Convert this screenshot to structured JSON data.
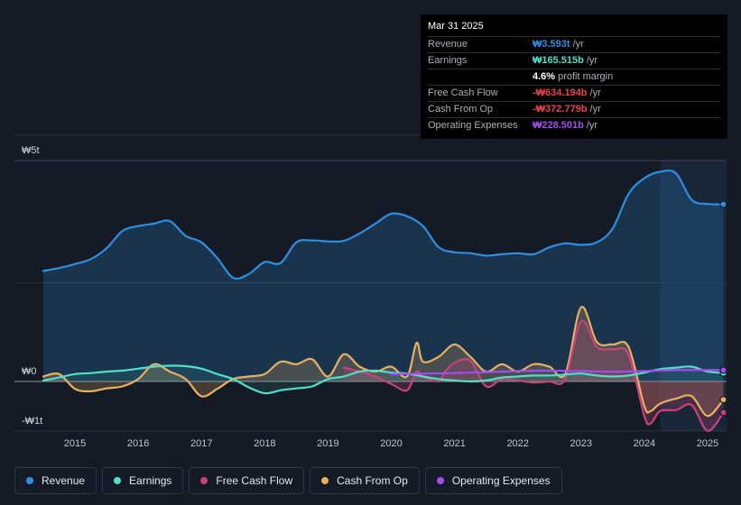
{
  "tooltip": {
    "date": "Mar 31 2025",
    "rows": [
      {
        "label": "Revenue",
        "value": "₩3.593t",
        "unit": "/yr",
        "color": "#2e8fe0"
      },
      {
        "label": "Earnings",
        "value": "₩165.515b",
        "unit": "/yr",
        "color": "#4fe0c8"
      },
      {
        "label": "",
        "value": "4.6%",
        "unit": "profit margin",
        "color": "#ffffff"
      },
      {
        "label": "Free Cash Flow",
        "value": "-₩634.194b",
        "unit": "/yr",
        "color": "#e8434d"
      },
      {
        "label": "Cash From Op",
        "value": "-₩372.779b",
        "unit": "/yr",
        "color": "#e8434d"
      },
      {
        "label": "Operating Expenses",
        "value": "₩228.501b",
        "unit": "/yr",
        "color": "#a64bf0"
      }
    ]
  },
  "legend": [
    {
      "label": "Revenue",
      "color": "#2e8fe0"
    },
    {
      "label": "Earnings",
      "color": "#4fe0c8"
    },
    {
      "label": "Free Cash Flow",
      "color": "#c8437a"
    },
    {
      "label": "Cash From Op",
      "color": "#e8b060"
    },
    {
      "label": "Operating Expenses",
      "color": "#a64bf0"
    }
  ],
  "chart_data": {
    "type": "line",
    "title": "",
    "xlabel": "",
    "ylabel": "",
    "unit": "KRW trillion",
    "x_ticks": [
      "2015",
      "2016",
      "2017",
      "2018",
      "2019",
      "2020",
      "2021",
      "2022",
      "2023",
      "2024",
      "2025"
    ],
    "y_labels": [
      {
        "value": 5,
        "label": "₩5t"
      },
      {
        "value": 0,
        "label": "₩0"
      },
      {
        "value": -1,
        "label": "-₩1t"
      }
    ],
    "ylim": [
      -1,
      5
    ],
    "xlim": [
      2014.5,
      2025.3
    ],
    "highlight_start": 2024.25,
    "series": [
      {
        "name": "Revenue",
        "color": "#2e8fe0",
        "x": [
          2014.5,
          2014.75,
          2015.0,
          2015.25,
          2015.5,
          2015.75,
          2016.0,
          2016.25,
          2016.5,
          2016.75,
          2017.0,
          2017.25,
          2017.5,
          2017.75,
          2018.0,
          2018.25,
          2018.5,
          2018.75,
          2019.0,
          2019.25,
          2019.5,
          2019.75,
          2020.0,
          2020.25,
          2020.5,
          2020.75,
          2021.0,
          2021.25,
          2021.5,
          2021.75,
          2022.0,
          2022.25,
          2022.5,
          2022.75,
          2023.0,
          2023.25,
          2023.5,
          2023.75,
          2024.0,
          2024.25,
          2024.5,
          2024.75,
          2025.0,
          2025.25
        ],
        "values": [
          2.24,
          2.3,
          2.38,
          2.48,
          2.7,
          3.05,
          3.15,
          3.2,
          3.25,
          2.95,
          2.82,
          2.5,
          2.1,
          2.18,
          2.42,
          2.4,
          2.82,
          2.86,
          2.84,
          2.85,
          3.0,
          3.2,
          3.4,
          3.35,
          3.15,
          2.72,
          2.62,
          2.6,
          2.55,
          2.58,
          2.6,
          2.58,
          2.72,
          2.8,
          2.77,
          2.82,
          3.1,
          3.8,
          4.12,
          4.25,
          4.22,
          3.68,
          3.6,
          3.59
        ]
      },
      {
        "name": "Earnings",
        "color": "#4fe0c8",
        "x": [
          2014.5,
          2014.75,
          2015.0,
          2015.25,
          2015.5,
          2015.75,
          2016.0,
          2016.25,
          2016.5,
          2016.75,
          2017.0,
          2017.25,
          2017.5,
          2017.75,
          2018.0,
          2018.25,
          2018.5,
          2018.75,
          2019.0,
          2019.25,
          2019.5,
          2019.75,
          2020.0,
          2020.25,
          2020.5,
          2020.75,
          2021.0,
          2021.25,
          2021.5,
          2021.75,
          2022.0,
          2022.25,
          2022.5,
          2022.75,
          2023.0,
          2023.25,
          2023.5,
          2023.75,
          2024.0,
          2024.25,
          2024.5,
          2024.75,
          2025.0,
          2025.25
        ],
        "values": [
          0.02,
          0.08,
          0.15,
          0.17,
          0.2,
          0.22,
          0.26,
          0.3,
          0.32,
          0.31,
          0.26,
          0.15,
          0.05,
          -0.12,
          -0.24,
          -0.18,
          -0.14,
          -0.1,
          0.05,
          0.1,
          0.2,
          0.22,
          0.18,
          0.16,
          0.1,
          0.05,
          0.02,
          0.0,
          0.02,
          0.08,
          0.1,
          0.12,
          0.12,
          0.14,
          0.16,
          0.12,
          0.1,
          0.12,
          0.18,
          0.25,
          0.28,
          0.3,
          0.2,
          0.17
        ]
      },
      {
        "name": "Free Cash Flow",
        "color": "#c8437a",
        "x": [
          2019.25,
          2019.5,
          2019.75,
          2020.0,
          2020.25,
          2020.4,
          2020.5,
          2020.75,
          2020.85,
          2021.0,
          2021.25,
          2021.5,
          2021.75,
          2022.0,
          2022.25,
          2022.5,
          2022.75,
          2023.0,
          2023.25,
          2023.5,
          2023.75,
          2024.0,
          2024.1,
          2024.25,
          2024.5,
          2024.75,
          2025.0,
          2025.25
        ],
        "values": [
          0.28,
          0.2,
          0.1,
          -0.05,
          -0.18,
          0.2,
          0.1,
          0.0,
          0.2,
          0.38,
          0.42,
          -0.1,
          0.05,
          0.02,
          -0.02,
          0.0,
          0.05,
          1.22,
          0.7,
          0.65,
          0.55,
          -0.7,
          -0.85,
          -0.6,
          -0.58,
          -0.48,
          -1.0,
          -0.63
        ]
      },
      {
        "name": "Cash From Op",
        "color": "#e8b060",
        "x": [
          2014.5,
          2014.75,
          2015.0,
          2015.25,
          2015.5,
          2015.75,
          2016.0,
          2016.25,
          2016.5,
          2016.75,
          2017.0,
          2017.25,
          2017.5,
          2017.75,
          2018.0,
          2018.25,
          2018.5,
          2018.75,
          2019.0,
          2019.25,
          2019.5,
          2019.75,
          2020.0,
          2020.25,
          2020.4,
          2020.5,
          2020.75,
          2021.0,
          2021.25,
          2021.5,
          2021.75,
          2022.0,
          2022.25,
          2022.5,
          2022.75,
          2023.0,
          2023.25,
          2023.5,
          2023.75,
          2024.0,
          2024.1,
          2024.25,
          2024.5,
          2024.75,
          2025.0,
          2025.25
        ],
        "values": [
          0.1,
          0.15,
          -0.15,
          -0.2,
          -0.14,
          -0.1,
          0.05,
          0.35,
          0.2,
          0.05,
          -0.3,
          -0.15,
          0.05,
          0.1,
          0.15,
          0.4,
          0.35,
          0.45,
          0.1,
          0.55,
          0.3,
          0.2,
          0.3,
          0.1,
          0.78,
          0.4,
          0.5,
          0.75,
          0.5,
          0.2,
          0.35,
          0.2,
          0.35,
          0.3,
          0.15,
          1.5,
          0.8,
          0.75,
          0.7,
          -0.5,
          -0.6,
          -0.45,
          -0.35,
          -0.3,
          -0.7,
          -0.37
        ]
      },
      {
        "name": "Operating Expenses",
        "color": "#a64bf0",
        "x": [
          2020.0,
          2020.5,
          2021.0,
          2021.5,
          2022.0,
          2022.5,
          2023.0,
          2023.5,
          2024.0,
          2024.5,
          2025.0,
          2025.25
        ],
        "values": [
          0.15,
          0.16,
          0.17,
          0.19,
          0.21,
          0.22,
          0.21,
          0.2,
          0.21,
          0.23,
          0.23,
          0.23
        ]
      }
    ]
  }
}
